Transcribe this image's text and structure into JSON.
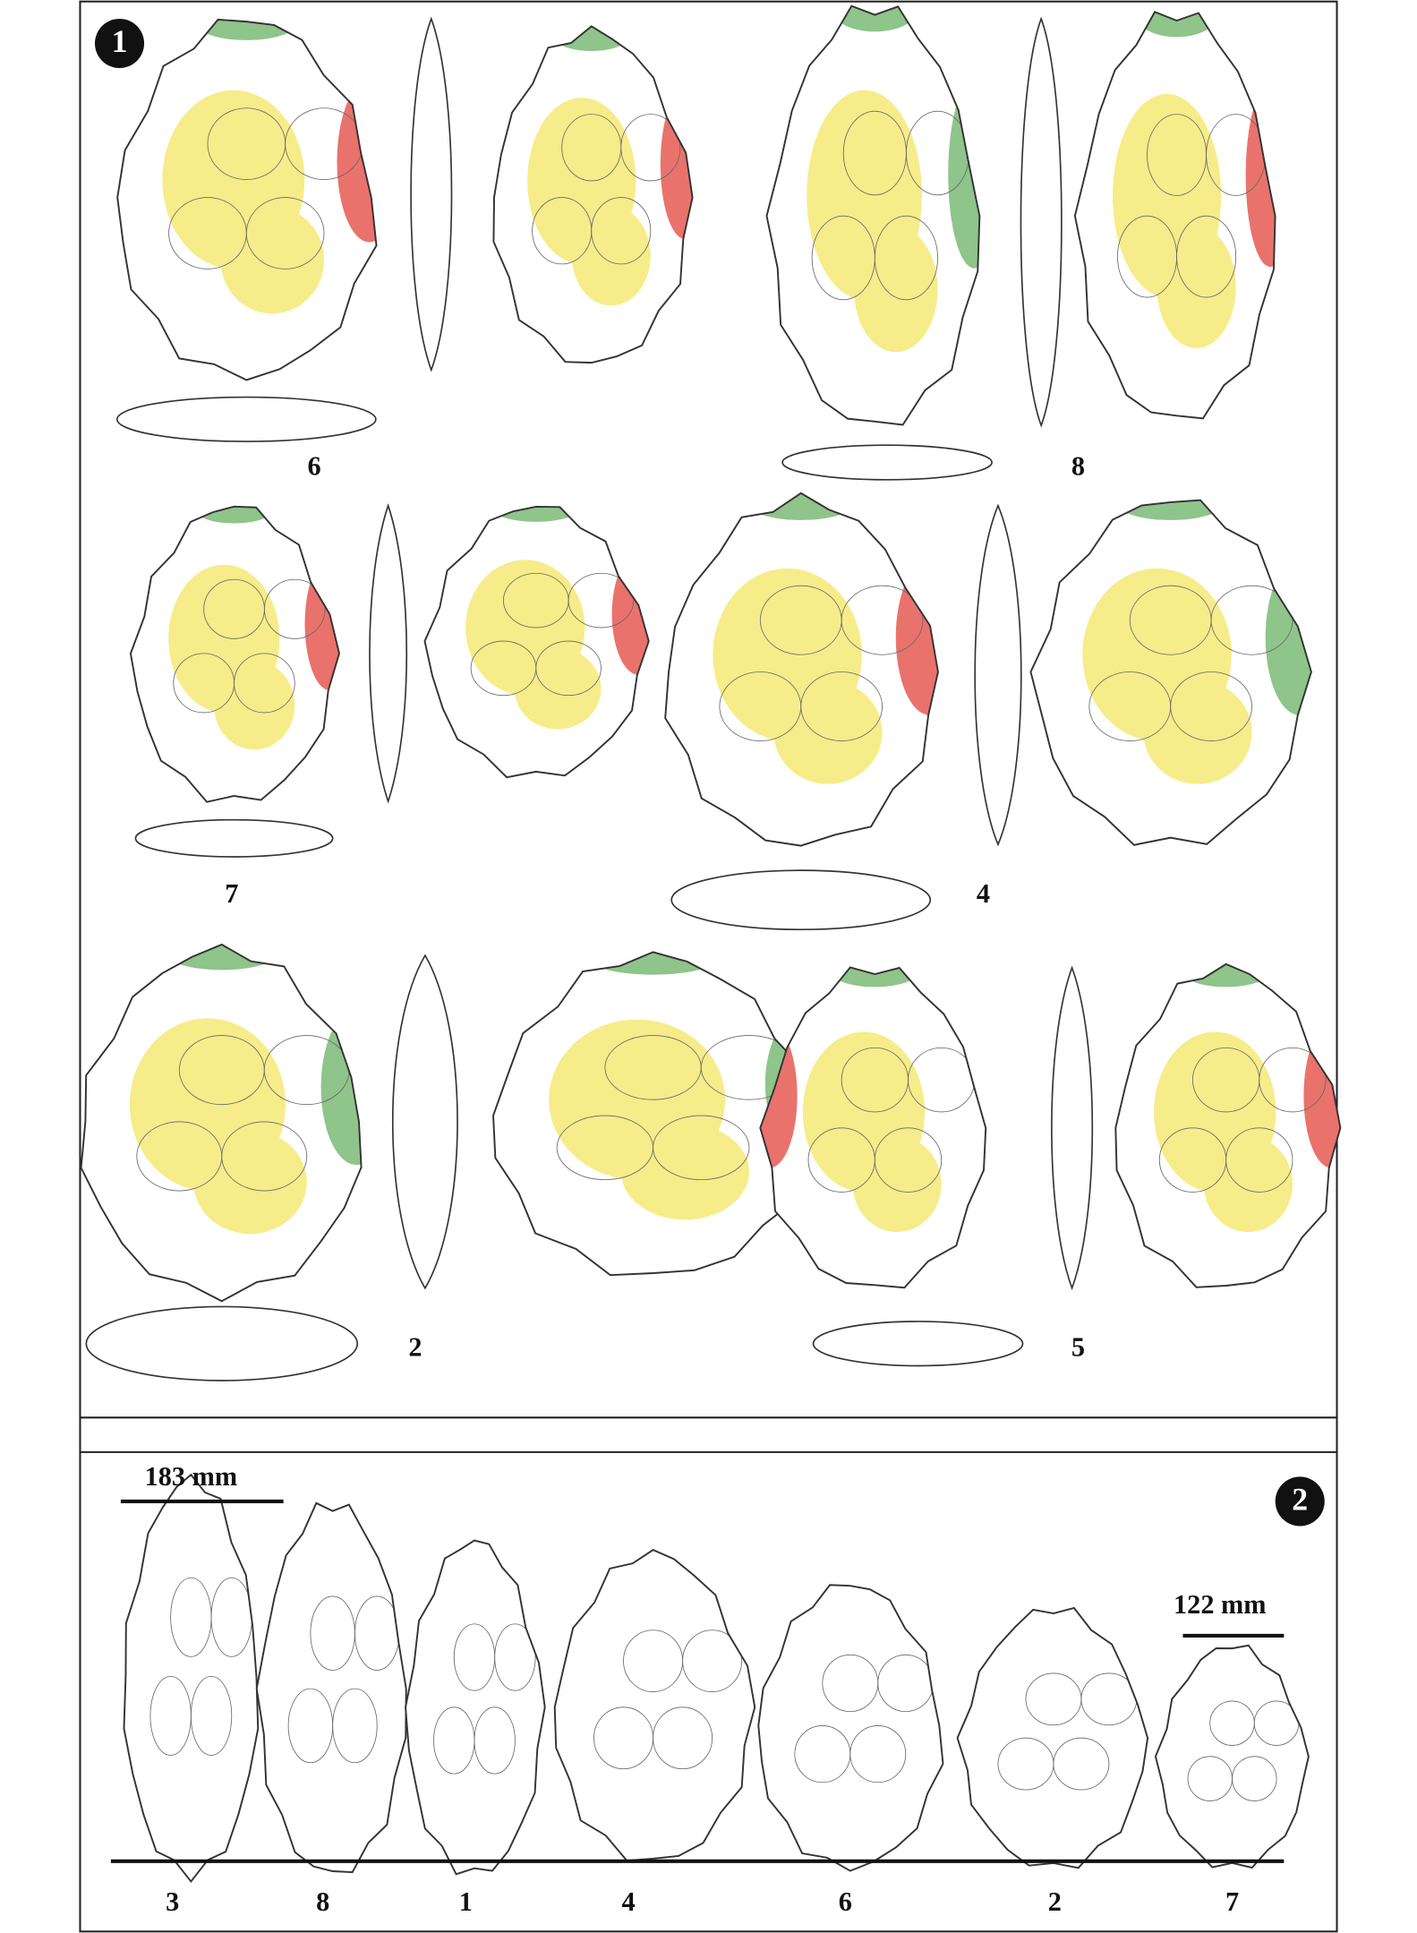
{
  "panel1": {
    "badge": "1",
    "labels": [
      "6",
      "8",
      "7",
      "4",
      "2",
      "5"
    ]
  },
  "panel2": {
    "badge": "2",
    "scale_left": "183 mm",
    "scale_right": "122 mm",
    "labels": [
      "3",
      "8",
      "1",
      "4",
      "6",
      "2",
      "7"
    ]
  }
}
